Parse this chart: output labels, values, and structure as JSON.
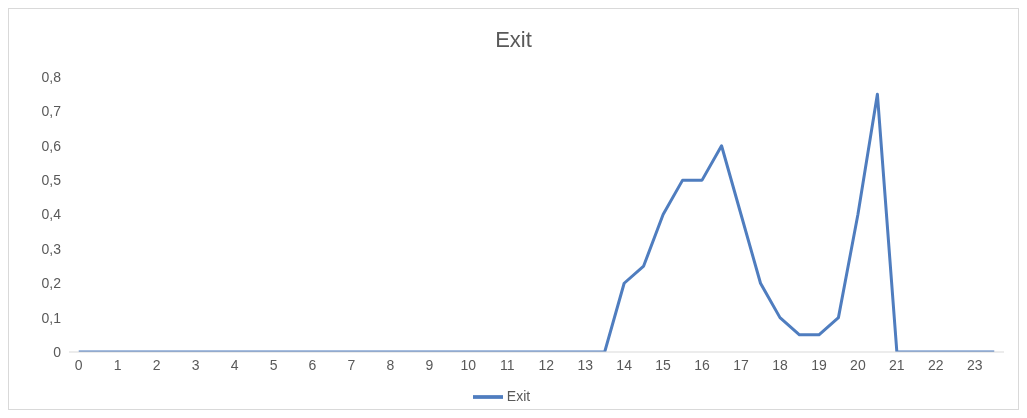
{
  "chart_data": {
    "type": "line",
    "title": "Exit",
    "x": [
      0,
      0.5,
      1,
      1.5,
      2,
      2.5,
      3,
      3.5,
      4,
      4.5,
      5,
      5.5,
      6,
      6.5,
      7,
      7.5,
      8,
      8.5,
      9,
      9.5,
      10,
      10.5,
      11,
      11.5,
      12,
      12.5,
      13,
      13.5,
      14,
      14.5,
      15,
      15.5,
      16,
      16.5,
      17,
      17.5,
      18,
      18.5,
      19,
      19.5,
      20,
      20.5,
      21,
      21.5,
      22,
      22.5,
      23,
      23.5
    ],
    "series": [
      {
        "name": "Exit",
        "color": "#4f7dbf",
        "values": [
          0,
          0,
          0,
          0,
          0,
          0,
          0,
          0,
          0,
          0,
          0,
          0,
          0,
          0,
          0,
          0,
          0,
          0,
          0,
          0,
          0,
          0,
          0,
          0,
          0,
          0,
          0,
          0,
          0.2,
          0.25,
          0.4,
          0.5,
          0.5,
          0.6,
          0.4,
          0.2,
          0.1,
          0.05,
          0.05,
          0.1,
          0.4,
          0.75,
          0,
          0,
          0,
          0,
          0,
          0
        ]
      }
    ],
    "xlim": [
      -0.25,
      23.75
    ],
    "xticks": [
      0,
      1,
      2,
      3,
      4,
      5,
      6,
      7,
      8,
      9,
      10,
      11,
      12,
      13,
      14,
      15,
      16,
      17,
      18,
      19,
      20,
      21,
      22,
      23
    ],
    "ylim": [
      0,
      0.8
    ],
    "yticks": [
      0,
      {
        "value": 0.1,
        "label": "0,1"
      },
      {
        "value": 0.2,
        "label": "0,2"
      },
      {
        "value": 0.3,
        "label": "0,3"
      },
      {
        "value": 0.4,
        "label": "0,4"
      },
      {
        "value": 0.5,
        "label": "0,5"
      },
      {
        "value": 0.6,
        "label": "0,6"
      },
      {
        "value": 0.7,
        "label": "0,7"
      },
      {
        "value": 0.8,
        "label": "0,8"
      }
    ],
    "grid": false,
    "legend": "bottom",
    "marker": "none",
    "line_style": "solid"
  }
}
